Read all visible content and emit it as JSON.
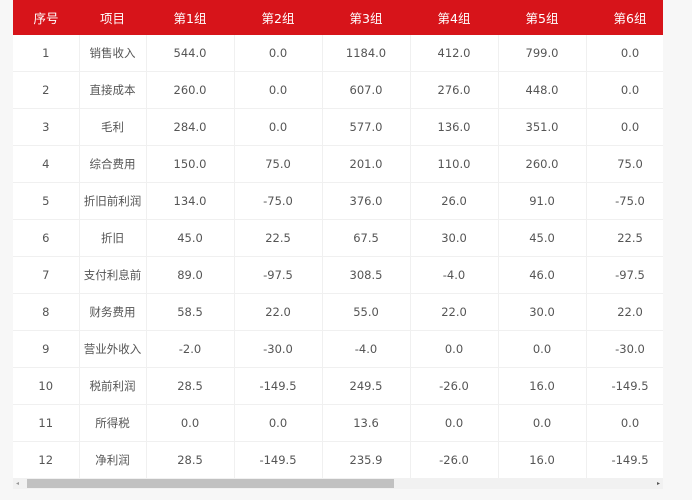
{
  "table": {
    "headers": [
      "序号",
      "项目",
      "第1组",
      "第2组",
      "第3组",
      "第4组",
      "第5组",
      "第6组"
    ],
    "rows": [
      [
        "1",
        "销售收入",
        "544.0",
        "0.0",
        "1184.0",
        "412.0",
        "799.0",
        "0.0"
      ],
      [
        "2",
        "直接成本",
        "260.0",
        "0.0",
        "607.0",
        "276.0",
        "448.0",
        "0.0"
      ],
      [
        "3",
        "毛利",
        "284.0",
        "0.0",
        "577.0",
        "136.0",
        "351.0",
        "0.0"
      ],
      [
        "4",
        "综合费用",
        "150.0",
        "75.0",
        "201.0",
        "110.0",
        "260.0",
        "75.0"
      ],
      [
        "5",
        "折旧前利润",
        "134.0",
        "-75.0",
        "376.0",
        "26.0",
        "91.0",
        "-75.0"
      ],
      [
        "6",
        "折旧",
        "45.0",
        "22.5",
        "67.5",
        "30.0",
        "45.0",
        "22.5"
      ],
      [
        "7",
        "支付利息前",
        "89.0",
        "-97.5",
        "308.5",
        "-4.0",
        "46.0",
        "-97.5"
      ],
      [
        "8",
        "财务费用",
        "58.5",
        "22.0",
        "55.0",
        "22.0",
        "30.0",
        "22.0"
      ],
      [
        "9",
        "营业外收入",
        "-2.0",
        "-30.0",
        "-4.0",
        "0.0",
        "0.0",
        "-30.0"
      ],
      [
        "10",
        "税前利润",
        "28.5",
        "-149.5",
        "249.5",
        "-26.0",
        "16.0",
        "-149.5"
      ],
      [
        "11",
        "所得税",
        "0.0",
        "0.0",
        "13.6",
        "0.0",
        "0.0",
        "0.0"
      ],
      [
        "12",
        "净利润",
        "28.5",
        "-149.5",
        "235.9",
        "-26.0",
        "16.0",
        "-149.5"
      ]
    ]
  },
  "colors": {
    "header_bg": "#d7141a",
    "header_text": "#ffffff",
    "cell_text": "#555555"
  },
  "scrollbar": {
    "left_arrow": "◂",
    "right_arrow": "▸"
  }
}
